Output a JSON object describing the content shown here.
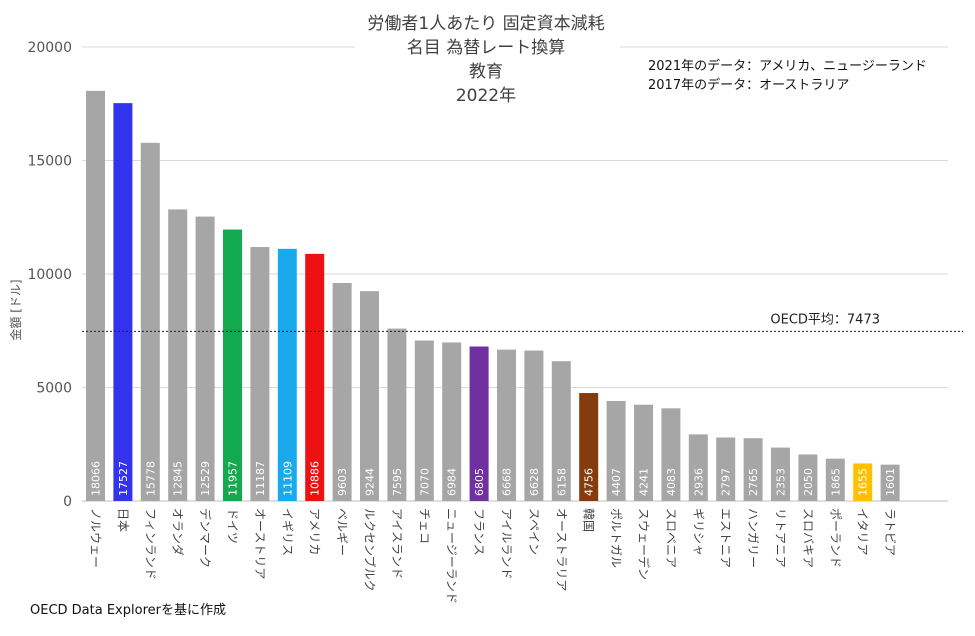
{
  "chart_data": {
    "type": "bar",
    "title_lines": [
      "労働者1人あたり 固定資本減耗",
      "名目 為替レート換算",
      "教育",
      "2022年"
    ],
    "notes": [
      "2021年のデータ：アメリカ、ニュージーランド",
      "2017年のデータ：オーストラリア"
    ],
    "ylabel": "金額 [ドル]",
    "ylim": [
      0,
      20000
    ],
    "yticks": [
      "0",
      "5000",
      "10000",
      "15000",
      "20000"
    ],
    "grid": true,
    "reference_line": {
      "value": 7473,
      "label": "OECD平均：7473"
    },
    "source": "OECD Data Explorerを基に作成",
    "categories": [
      "ノルウェー",
      "日本",
      "フィンランド",
      "オランダ",
      "デンマーク",
      "ドイツ",
      "オーストリア",
      "イギリス",
      "アメリカ",
      "ベルギー",
      "ルクセンブルク",
      "アイスランド",
      "チェコ",
      "ニュージーランド",
      "フランス",
      "アイルランド",
      "スペイン",
      "オーストラリア",
      "韓国",
      "ポルトガル",
      "スウェーデン",
      "スロベニア",
      "ギリシャ",
      "エストニア",
      "ハンガリー",
      "リトアニア",
      "スロバキア",
      "ポーランド",
      "イタリア",
      "ラトビア"
    ],
    "values": [
      18066,
      17527,
      15778,
      12845,
      12529,
      11957,
      11187,
      11109,
      10886,
      9603,
      9244,
      7595,
      7070,
      6984,
      6805,
      6668,
      6628,
      6158,
      4756,
      4407,
      4241,
      4083,
      2936,
      2797,
      2765,
      2353,
      2050,
      1865,
      1655,
      1601
    ],
    "value_labels": [
      "18066",
      "17527",
      "15778",
      "12845",
      "12529",
      "11957",
      "11187",
      "11109",
      "10886",
      "9603",
      "9244",
      "7595",
      "7070",
      "6984",
      "6805",
      "6668",
      "6628",
      "6158",
      "4756",
      "4407",
      "4241",
      "4083",
      "2936",
      "2797",
      "2765",
      "2353",
      "2050",
      "1865",
      "1655",
      "1601"
    ],
    "colors": [
      "#a6a6a6",
      "#3333ee",
      "#a6a6a6",
      "#a6a6a6",
      "#a6a6a6",
      "#13aa4f",
      "#a6a6a6",
      "#19aaee",
      "#ee1111",
      "#a6a6a6",
      "#a6a6a6",
      "#a6a6a6",
      "#a6a6a6",
      "#a6a6a6",
      "#7030a0",
      "#a6a6a6",
      "#a6a6a6",
      "#a6a6a6",
      "#843c0c",
      "#a6a6a6",
      "#a6a6a6",
      "#a6a6a6",
      "#a6a6a6",
      "#a6a6a6",
      "#a6a6a6",
      "#a6a6a6",
      "#a6a6a6",
      "#a6a6a6",
      "#ffc000",
      "#a6a6a6"
    ]
  }
}
